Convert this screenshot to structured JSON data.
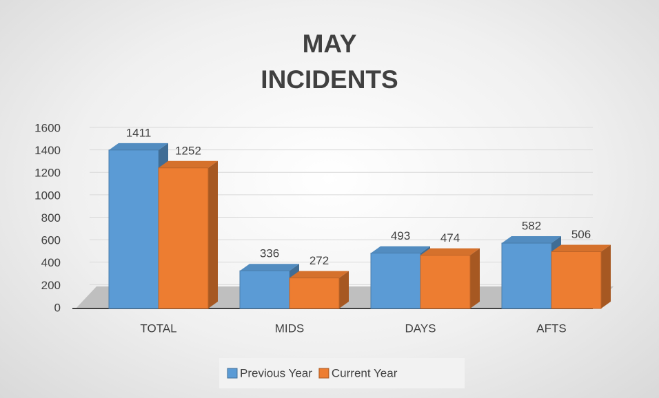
{
  "chart_data": {
    "type": "bar",
    "title": "MAY INCIDENTS",
    "categories": [
      "TOTAL",
      "MIDS",
      "DAYS",
      "AFTS"
    ],
    "series": [
      {
        "name": "Previous Year",
        "color": "#5b9bd5",
        "values": [
          1411,
          336,
          493,
          582
        ]
      },
      {
        "name": "Current Year",
        "color": "#ed7d31",
        "values": [
          1252,
          272,
          474,
          506
        ]
      }
    ],
    "ylim": [
      0,
      1600
    ],
    "yticks": [
      0,
      200,
      400,
      600,
      800,
      1000,
      1200,
      1400,
      1600
    ],
    "grid": true,
    "legend": "bottom"
  }
}
